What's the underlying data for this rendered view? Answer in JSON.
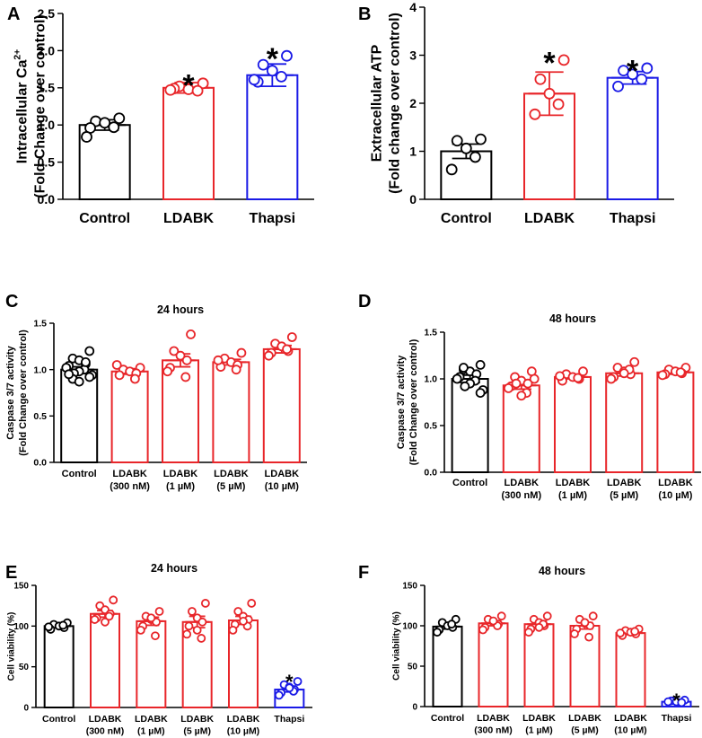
{
  "figure": {
    "colors": {
      "control": "#000000",
      "ldabk": "#e8262a",
      "thapsi": "#1a1ae6"
    }
  },
  "chart_data": [
    {
      "panel": "A",
      "type": "bar",
      "title": "",
      "categories": [
        "Control",
        "LDABK",
        "Thapsi"
      ],
      "ylabel_lines": [
        "Intracellular Ca",
        "(Fold Change over control)"
      ],
      "ylabel_sup": "2+",
      "ylim": [
        0.0,
        2.5
      ],
      "yticks": [
        "0.0",
        "0.5",
        "1.0",
        "1.5",
        "2.0",
        "2.5"
      ],
      "means": [
        1.0,
        1.5,
        1.67
      ],
      "errors": [
        0.07,
        0.07,
        0.15
      ],
      "points": [
        [
          1.09,
          1.05,
          1.03,
          0.97,
          0.96,
          0.84
        ],
        [
          1.56,
          1.52,
          1.48,
          1.46,
          1.49,
          1.47
        ],
        [
          1.93,
          1.81,
          1.73,
          1.65,
          1.58,
          1.61
        ]
      ],
      "significance": [
        "",
        "*",
        "*"
      ],
      "bar_colors": [
        "#000000",
        "#e8262a",
        "#1a1ae6"
      ]
    },
    {
      "panel": "B",
      "type": "bar",
      "title": "",
      "categories": [
        "Control",
        "LDABK",
        "Thapsi"
      ],
      "ylabel_lines": [
        "Extracellular ATP",
        "(Fold change over control)"
      ],
      "ylim": [
        0,
        4
      ],
      "yticks": [
        "0",
        "1",
        "2",
        "3",
        "4"
      ],
      "means": [
        1.0,
        2.2,
        2.53
      ],
      "errors": [
        0.15,
        0.45,
        0.13
      ],
      "points": [
        [
          1.25,
          1.22,
          1.06,
          0.88,
          0.62
        ],
        [
          2.9,
          2.5,
          2.2,
          1.98,
          1.77
        ],
        [
          2.73,
          2.68,
          2.6,
          2.5,
          2.35
        ]
      ],
      "significance": [
        "",
        "*",
        "*"
      ],
      "bar_colors": [
        "#000000",
        "#e8262a",
        "#1a1ae6"
      ]
    },
    {
      "panel": "C",
      "type": "bar",
      "title": "24 hours",
      "categories": [
        [
          "Control"
        ],
        [
          "LDABK",
          "(300 nM)"
        ],
        [
          "LDABK",
          "(1 µM)"
        ],
        [
          "LDABK",
          "(5 µM)"
        ],
        [
          "LDABK",
          "(10 µM)"
        ]
      ],
      "ylabel_lines": [
        "Caspase 3/7 activity",
        "(Fold Change over control)"
      ],
      "ylim": [
        0.0,
        1.5
      ],
      "yticks": [
        "0.0",
        "0.5",
        "1.0",
        "1.5"
      ],
      "means": [
        1.0,
        0.98,
        1.1,
        1.08,
        1.22
      ],
      "errors": [
        0.03,
        0.03,
        0.07,
        0.03,
        0.04
      ],
      "points": [
        [
          1.2,
          1.12,
          1.1,
          1.06,
          1.04,
          1.02,
          1.0,
          0.98,
          0.96,
          0.94,
          0.92,
          0.9,
          0.87,
          1.08,
          0.95
        ],
        [
          1.02,
          1.0,
          0.98,
          0.96,
          0.94,
          1.05,
          0.9
        ],
        [
          1.38,
          1.2,
          1.15,
          1.1,
          1.02,
          0.98,
          0.92
        ],
        [
          1.18,
          1.12,
          1.08,
          1.05,
          1.03,
          1.1,
          1.0
        ],
        [
          1.35,
          1.28,
          1.25,
          1.2,
          1.18,
          1.15,
          1.22
        ]
      ],
      "significance": [
        "",
        "",
        "",
        "",
        ""
      ],
      "bar_colors": [
        "#000000",
        "#e8262a",
        "#e8262a",
        "#e8262a",
        "#e8262a"
      ]
    },
    {
      "panel": "D",
      "type": "bar",
      "title": "48 hours",
      "categories": [
        [
          "Control"
        ],
        [
          "LDABK",
          "(300 nM)"
        ],
        [
          "LDABK",
          "(1 µM)"
        ],
        [
          "LDABK",
          "(5 µM)"
        ],
        [
          "LDABK",
          "(10 µM)"
        ]
      ],
      "ylabel_lines": [
        "Caspase 3/7 activity",
        "(Fold Change over control)"
      ],
      "ylim": [
        0.0,
        1.5
      ],
      "yticks": [
        "0.0",
        "0.5",
        "1.0",
        "1.5"
      ],
      "means": [
        1.0,
        0.93,
        1.02,
        1.06,
        1.07
      ],
      "errors": [
        0.04,
        0.04,
        0.02,
        0.03,
        0.02
      ],
      "points": [
        [
          1.15,
          1.1,
          1.08,
          1.05,
          1.02,
          1.0,
          0.98,
          0.95,
          0.92,
          0.88,
          0.85,
          1.12
        ],
        [
          1.08,
          1.02,
          0.98,
          0.95,
          0.92,
          0.9,
          0.85,
          0.82,
          0.95,
          1.0
        ],
        [
          1.08,
          1.05,
          1.02,
          1.0,
          0.98,
          1.03,
          1.01
        ],
        [
          1.18,
          1.12,
          1.08,
          1.05,
          1.02,
          1.0,
          1.1,
          1.06
        ],
        [
          1.12,
          1.1,
          1.08,
          1.06,
          1.05,
          1.04,
          1.07
        ]
      ],
      "significance": [
        "",
        "",
        "",
        "",
        ""
      ],
      "bar_colors": [
        "#000000",
        "#e8262a",
        "#e8262a",
        "#e8262a",
        "#e8262a"
      ]
    },
    {
      "panel": "E",
      "type": "bar",
      "title": "24 hours",
      "categories": [
        [
          "Control"
        ],
        [
          "LDABK",
          "(300 nM)"
        ],
        [
          "LDABK",
          "(1 µM)"
        ],
        [
          "LDABK",
          "(5 µM)"
        ],
        [
          "LDABK",
          "(10 µM)"
        ],
        [
          "Thapsi"
        ]
      ],
      "ylabel_lines": [
        "Cell viability (%)"
      ],
      "ylim": [
        0,
        150
      ],
      "yticks": [
        "0",
        "50",
        "100",
        "150"
      ],
      "means": [
        100,
        115,
        106,
        105,
        107,
        22
      ],
      "errors": [
        2,
        4,
        5,
        7,
        5,
        3
      ],
      "points": [
        [
          104,
          102,
          100,
          98,
          96,
          99,
          101
        ],
        [
          132,
          125,
          120,
          115,
          110,
          108,
          112,
          105
        ],
        [
          118,
          112,
          108,
          105,
          100,
          95,
          88,
          110
        ],
        [
          128,
          118,
          110,
          105,
          100,
          90,
          85,
          95
        ],
        [
          128,
          118,
          112,
          108,
          102,
          95,
          100,
          106
        ],
        [
          32,
          28,
          25,
          22,
          18,
          15,
          20,
          24
        ]
      ],
      "significance": [
        "",
        "",
        "",
        "",
        "",
        "*"
      ],
      "bar_colors": [
        "#000000",
        "#e8262a",
        "#e8262a",
        "#e8262a",
        "#e8262a",
        "#1a1ae6"
      ]
    },
    {
      "panel": "F",
      "type": "bar",
      "title": "48 hours",
      "categories": [
        [
          "Control"
        ],
        [
          "LDABK",
          "(300 nM)"
        ],
        [
          "LDABK",
          "(1 µM)"
        ],
        [
          "LDABK",
          "(5 µM)"
        ],
        [
          "LDABK",
          "(10 µM)"
        ],
        [
          "Thapsi"
        ]
      ],
      "ylabel_lines": [
        "Cell viability (%)"
      ],
      "ylim": [
        0,
        150
      ],
      "yticks": [
        "0",
        "50",
        "100",
        "150"
      ],
      "means": [
        99,
        103,
        102,
        100,
        91,
        6
      ],
      "errors": [
        3,
        3,
        4,
        4,
        2,
        1
      ],
      "points": [
        [
          108,
          104,
          100,
          98,
          95,
          92,
          102
        ],
        [
          112,
          108,
          105,
          102,
          98,
          95,
          100,
          106
        ],
        [
          112,
          108,
          104,
          100,
          96,
          92,
          102,
          98
        ],
        [
          112,
          108,
          103,
          100,
          96,
          90,
          86,
          104
        ],
        [
          96,
          94,
          92,
          90,
          88,
          91,
          93
        ],
        [
          8,
          7,
          6,
          5,
          6
        ]
      ],
      "significance": [
        "",
        "",
        "",
        "",
        "",
        "*"
      ],
      "bar_colors": [
        "#000000",
        "#e8262a",
        "#e8262a",
        "#e8262a",
        "#e8262a",
        "#1a1ae6"
      ]
    }
  ]
}
